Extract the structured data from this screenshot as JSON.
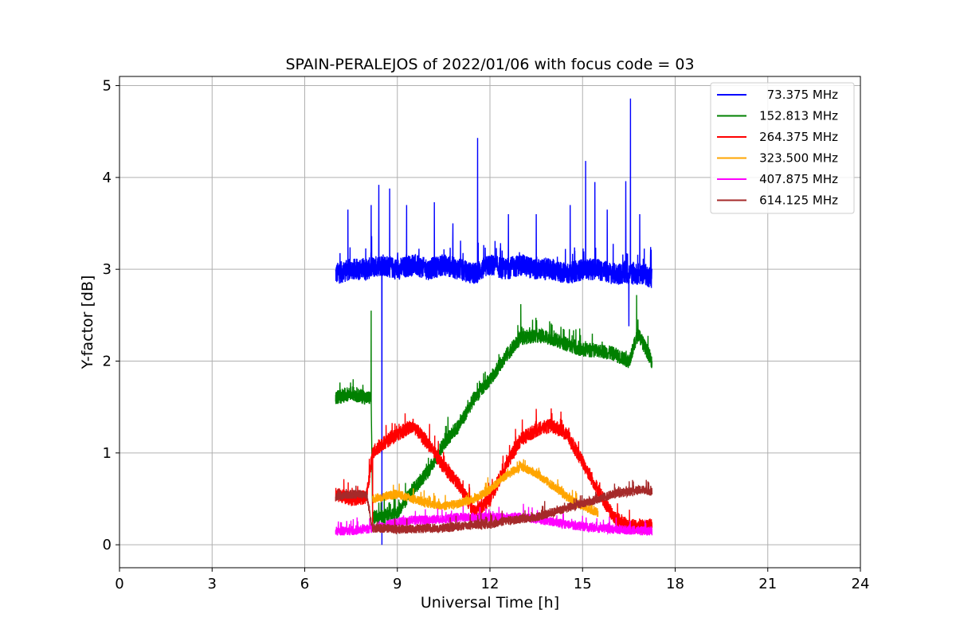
{
  "chart_data": {
    "type": "line",
    "title": "SPAIN-PERALEJOS of 2022/01/06 with focus code = 03",
    "xlabel": "Universal Time [h]",
    "ylabel": "Y-factor [dB]",
    "xlim": [
      0,
      24
    ],
    "ylim": [
      -0.25,
      5.1
    ],
    "xticks": [
      0,
      3,
      6,
      9,
      12,
      15,
      18,
      21,
      24
    ],
    "xtick_labels": [
      "0",
      "3",
      "6",
      "9",
      "12",
      "15",
      "18",
      "21",
      "24"
    ],
    "yticks": [
      0,
      1,
      2,
      3,
      4,
      5
    ],
    "ytick_labels": [
      "0",
      "1",
      "2",
      "3",
      "4",
      "5"
    ],
    "grid": true,
    "legend_position": "top-right",
    "series": [
      {
        "name": "73.375 MHz",
        "color": "#0000ff",
        "x": [
          7.0,
          7.5,
          8.0,
          8.5,
          9.0,
          9.5,
          10.0,
          10.5,
          11.0,
          11.5,
          12.0,
          12.5,
          13.0,
          13.5,
          14.0,
          14.5,
          15.0,
          15.5,
          16.0,
          16.5,
          17.0,
          17.25
        ],
        "y": [
          2.95,
          3.0,
          3.0,
          3.05,
          3.0,
          3.05,
          3.0,
          3.05,
          3.0,
          2.95,
          3.05,
          3.0,
          3.05,
          3.0,
          3.0,
          2.95,
          3.0,
          3.0,
          2.95,
          2.95,
          2.95,
          2.9
        ],
        "noise": 0.12,
        "spikes": [
          {
            "x": 7.4,
            "y": 3.65
          },
          {
            "x": 8.15,
            "y": 3.7
          },
          {
            "x": 8.4,
            "y": 3.92
          },
          {
            "x": 8.5,
            "y": 0.0
          },
          {
            "x": 8.75,
            "y": 3.88
          },
          {
            "x": 9.3,
            "y": 3.7
          },
          {
            "x": 10.2,
            "y": 3.73
          },
          {
            "x": 10.8,
            "y": 3.5
          },
          {
            "x": 11.6,
            "y": 4.43
          },
          {
            "x": 12.6,
            "y": 3.6
          },
          {
            "x": 13.5,
            "y": 3.6
          },
          {
            "x": 14.6,
            "y": 3.7
          },
          {
            "x": 15.1,
            "y": 4.18
          },
          {
            "x": 15.4,
            "y": 3.95
          },
          {
            "x": 15.8,
            "y": 3.65
          },
          {
            "x": 16.4,
            "y": 3.96
          },
          {
            "x": 16.55,
            "y": 4.86
          },
          {
            "x": 16.5,
            "y": 2.38
          },
          {
            "x": 16.85,
            "y": 3.6
          }
        ]
      },
      {
        "name": "152.813 MHz",
        "color": "#008000",
        "x": [
          7.0,
          7.5,
          8.0,
          8.15,
          8.2,
          8.5,
          9.0,
          9.5,
          10.0,
          10.5,
          11.0,
          11.5,
          12.0,
          12.5,
          13.0,
          13.5,
          14.0,
          14.5,
          15.0,
          15.5,
          16.0,
          16.5,
          16.8,
          17.25
        ],
        "y": [
          1.6,
          1.65,
          1.6,
          1.6,
          0.3,
          0.3,
          0.35,
          0.6,
          0.8,
          1.1,
          1.3,
          1.6,
          1.8,
          2.05,
          2.25,
          2.28,
          2.25,
          2.18,
          2.12,
          2.12,
          2.08,
          2.0,
          2.3,
          2.0
        ],
        "noise": 0.08,
        "spikes": [
          {
            "x": 8.15,
            "y": 2.55
          },
          {
            "x": 16.75,
            "y": 2.72
          },
          {
            "x": 13.0,
            "y": 2.62
          }
        ]
      },
      {
        "name": "264.375 MHz",
        "color": "#ff0000",
        "x": [
          7.0,
          7.5,
          8.0,
          8.2,
          8.5,
          9.0,
          9.5,
          10.0,
          10.5,
          11.0,
          11.5,
          12.0,
          12.5,
          13.0,
          13.5,
          14.0,
          14.5,
          15.0,
          15.5,
          16.0,
          16.5,
          17.0,
          17.25
        ],
        "y": [
          0.55,
          0.5,
          0.52,
          1.0,
          1.1,
          1.2,
          1.3,
          1.1,
          0.85,
          0.65,
          0.35,
          0.5,
          0.85,
          1.15,
          1.25,
          1.3,
          1.2,
          0.9,
          0.6,
          0.3,
          0.2,
          0.2,
          0.2
        ],
        "noise": 0.08,
        "spikes": [
          {
            "x": 8.2,
            "y": 0.2
          },
          {
            "x": 13.5,
            "y": 1.48
          },
          {
            "x": 14.3,
            "y": 1.45
          }
        ]
      },
      {
        "name": "323.500 MHz",
        "color": "#ffa500",
        "x": [
          8.2,
          8.5,
          9.0,
          9.5,
          10.0,
          10.5,
          11.0,
          11.5,
          12.0,
          12.5,
          13.0,
          13.5,
          14.0,
          14.5,
          15.0,
          15.5
        ],
        "y": [
          0.5,
          0.52,
          0.55,
          0.5,
          0.45,
          0.42,
          0.45,
          0.5,
          0.6,
          0.75,
          0.85,
          0.78,
          0.65,
          0.52,
          0.42,
          0.35
        ],
        "noise": 0.05,
        "spikes": []
      },
      {
        "name": "407.875 MHz",
        "color": "#ff00ff",
        "x": [
          7.0,
          7.5,
          8.0,
          8.5,
          9.0,
          9.5,
          10.0,
          10.5,
          11.0,
          11.5,
          12.0,
          12.5,
          13.0,
          13.5,
          14.0,
          14.5,
          15.0,
          15.5,
          16.0,
          16.5,
          17.0,
          17.25
        ],
        "y": [
          0.15,
          0.15,
          0.17,
          0.2,
          0.25,
          0.27,
          0.27,
          0.28,
          0.3,
          0.3,
          0.3,
          0.3,
          0.3,
          0.28,
          0.25,
          0.22,
          0.2,
          0.18,
          0.17,
          0.16,
          0.15,
          0.15
        ],
        "noise": 0.05,
        "spikes": []
      },
      {
        "name": "614.125 MHz",
        "color": "#a52a2a",
        "x": [
          7.0,
          7.5,
          8.0,
          8.2,
          8.5,
          9.0,
          9.5,
          10.0,
          10.5,
          11.0,
          11.5,
          12.0,
          12.5,
          13.0,
          13.5,
          14.0,
          14.5,
          15.0,
          15.5,
          16.0,
          16.5,
          17.0,
          17.25
        ],
        "y": [
          0.52,
          0.55,
          0.55,
          0.18,
          0.18,
          0.17,
          0.17,
          0.18,
          0.18,
          0.2,
          0.22,
          0.22,
          0.26,
          0.28,
          0.3,
          0.35,
          0.4,
          0.45,
          0.5,
          0.55,
          0.58,
          0.6,
          0.58
        ],
        "noise": 0.05,
        "spikes": []
      }
    ]
  }
}
